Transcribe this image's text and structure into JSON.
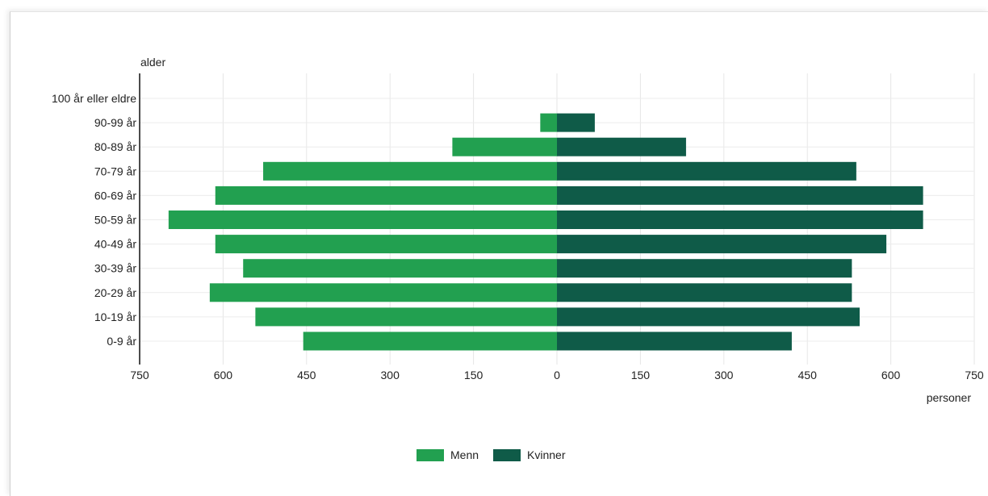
{
  "chart_data": {
    "type": "bar",
    "orientation": "horizontal",
    "subtype": "population-pyramid",
    "ylabel": "alder",
    "xlabel": "personer",
    "categories": [
      "100 år eller eldre",
      "90-99 år",
      "80-89 år",
      "70-79 år",
      "60-69 år",
      "50-59 år",
      "40-49 år",
      "30-39 år",
      "20-29 år",
      "10-19 år",
      "0-9 år"
    ],
    "series": [
      {
        "name": "Menn",
        "color": "#22a050",
        "side": "left",
        "values": [
          0,
          30,
          188,
          528,
          614,
          698,
          614,
          564,
          624,
          542,
          456
        ]
      },
      {
        "name": "Kvinner",
        "color": "#0f5b48",
        "side": "right",
        "values": [
          0,
          68,
          232,
          538,
          658,
          658,
          592,
          530,
          530,
          544,
          422
        ]
      }
    ],
    "xlim": [
      -750,
      750
    ],
    "xticks": [
      -750,
      -600,
      -450,
      -300,
      -150,
      0,
      150,
      300,
      450,
      600,
      750
    ],
    "xtick_labels": [
      "750",
      "600",
      "450",
      "300",
      "150",
      "0",
      "150",
      "300",
      "450",
      "600",
      "750"
    ],
    "grid": true,
    "legend_position": "bottom-center"
  }
}
